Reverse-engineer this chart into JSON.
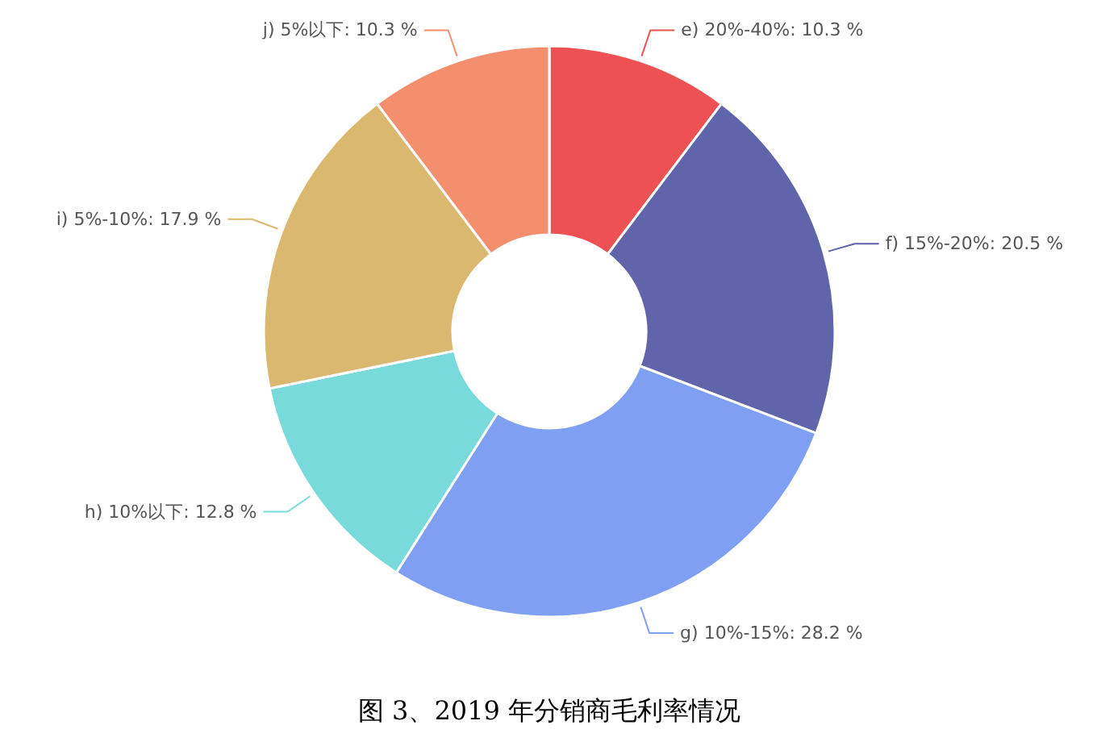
{
  "chart_data": {
    "type": "donut",
    "title": "图 3、2019 年分销商毛利率情况",
    "categories": [
      "e) 20%-40%",
      "f) 15%-20%",
      "g) 10%-15%",
      "h) 10%以下",
      "i) 5%-10%",
      "j) 5%以下"
    ],
    "values": [
      10.3,
      20.5,
      28.2,
      12.8,
      17.9,
      10.3
    ],
    "value_labels": [
      "10.3 %",
      "20.5 %",
      "28.2 %",
      "12.8 %",
      "17.9 %",
      "10.3 %"
    ],
    "colors": [
      "#ee5153",
      "#5f64ab",
      "#7f9ff2",
      "#78dada",
      "#dbb870",
      "#f48f6e"
    ]
  }
}
